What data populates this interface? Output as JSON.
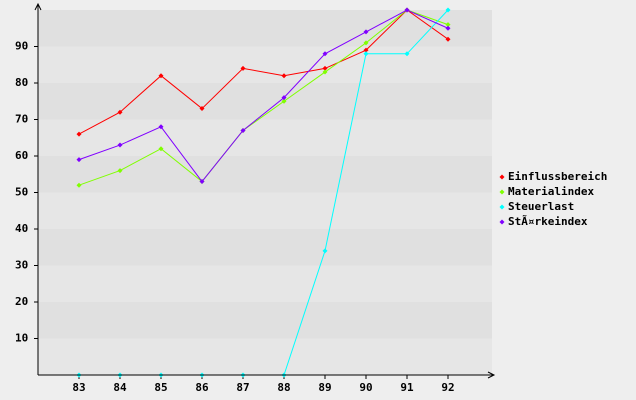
{
  "chart_data": {
    "type": "line",
    "categories": [
      "83",
      "84",
      "85",
      "86",
      "87",
      "88",
      "89",
      "90",
      "91",
      "92"
    ],
    "series": [
      {
        "name": "Einflussbereich",
        "color": "#ff0000",
        "values": [
          66,
          72,
          82,
          73,
          84,
          82,
          84,
          89,
          100,
          92
        ]
      },
      {
        "name": "Materialindex",
        "color": "#80ff00",
        "values": [
          52,
          56,
          62,
          53,
          67,
          75,
          83,
          91,
          100,
          96
        ]
      },
      {
        "name": "Steuerlast",
        "color": "#00ffff",
        "values": [
          0,
          0,
          0,
          0,
          0,
          0,
          34,
          88,
          88,
          100
        ]
      },
      {
        "name": "StÃ¤rkeindex",
        "color": "#8000ff",
        "values": [
          59,
          63,
          68,
          53,
          67,
          76,
          88,
          94,
          100,
          95
        ]
      }
    ],
    "ylim": [
      0,
      100
    ],
    "yticks": [
      10,
      20,
      30,
      40,
      50,
      60,
      70,
      80,
      90
    ],
    "grid": true,
    "legend": "right"
  }
}
